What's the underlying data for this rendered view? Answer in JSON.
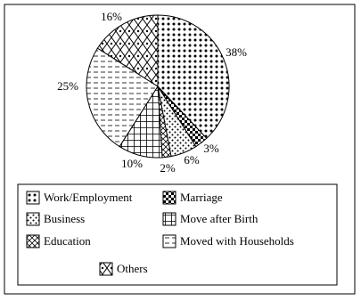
{
  "chart_data": {
    "type": "pie",
    "categories": [
      "Work/Employment",
      "Marriage",
      "Business",
      "Education",
      "Move after Birth",
      "Moved with Households",
      "Others"
    ],
    "values": [
      38,
      3,
      6,
      2,
      10,
      25,
      16
    ],
    "value_labels": [
      "38%",
      "3%",
      "6%",
      "2%",
      "10%",
      "25%",
      "16%"
    ],
    "color": "#000000"
  }
}
